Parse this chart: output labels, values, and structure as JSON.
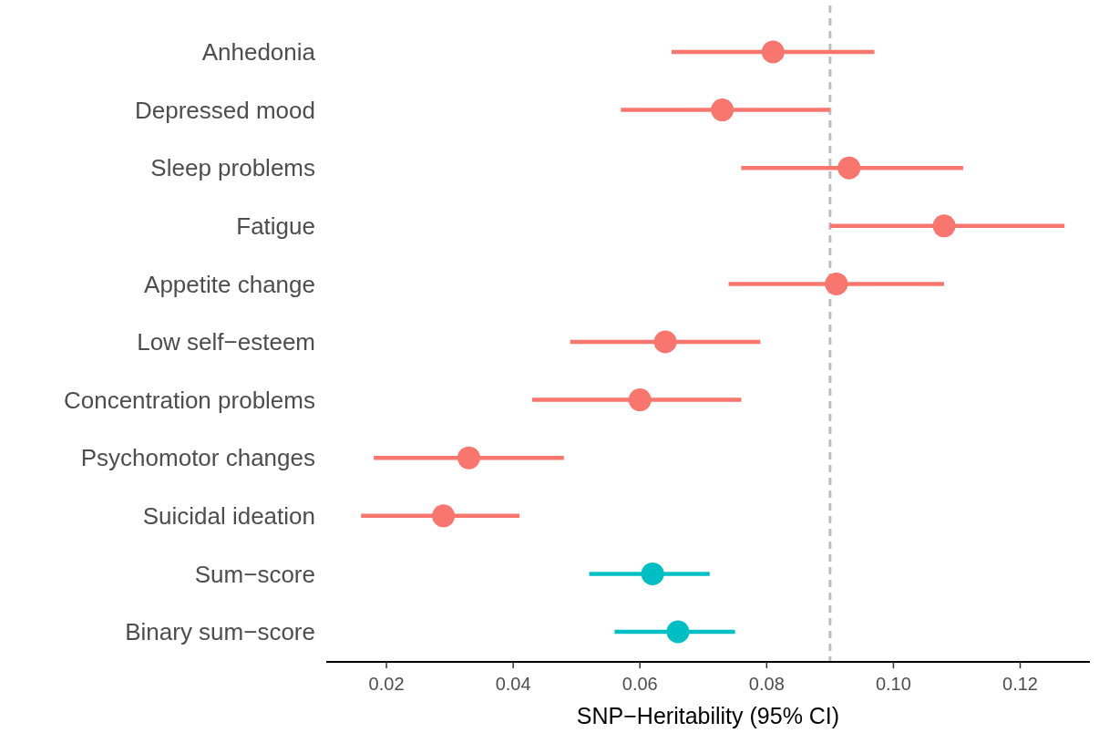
{
  "chart_data": {
    "type": "scatter",
    "orientation": "horizontal",
    "xlabel": "SNP−Heritability (95% CI)",
    "categories": [
      "Anhedonia",
      "Depressed mood",
      "Sleep problems",
      "Fatigue",
      "Appetite change",
      "Low self−esteem",
      "Concentration problems",
      "Psychomotor changes",
      "Suicidal ideation",
      "Sum−score",
      "Binary sum−score"
    ],
    "series": [
      {
        "color": "#f8766d",
        "values": [
          0.081,
          0.073,
          0.093,
          0.108,
          0.091,
          0.064,
          0.06,
          0.033,
          0.029,
          null,
          null
        ],
        "errors": [
          [
            0.065,
            0.097
          ],
          [
            0.057,
            0.09
          ],
          [
            0.076,
            0.111
          ],
          [
            0.09,
            0.127
          ],
          [
            0.074,
            0.108
          ],
          [
            0.049,
            0.079
          ],
          [
            0.043,
            0.076
          ],
          [
            0.018,
            0.048
          ],
          [
            0.016,
            0.041
          ],
          null,
          null
        ]
      },
      {
        "color": "#00bfc4",
        "values": [
          null,
          null,
          null,
          null,
          null,
          null,
          null,
          null,
          null,
          0.062,
          0.066
        ],
        "errors": [
          null,
          null,
          null,
          null,
          null,
          null,
          null,
          null,
          null,
          [
            0.052,
            0.071
          ],
          [
            0.056,
            0.075
          ]
        ]
      }
    ],
    "xlim": [
      0.0105,
      0.131
    ],
    "xticks": [
      0.02,
      0.04,
      0.06,
      0.08,
      {
        "value": 0.1,
        "label": "0.10"
      },
      0.12
    ],
    "ref_lines": [
      {
        "axis": "x",
        "value": 0.09,
        "color": "#bebebe",
        "line_style": "dashed"
      }
    ],
    "marker": "circle"
  }
}
